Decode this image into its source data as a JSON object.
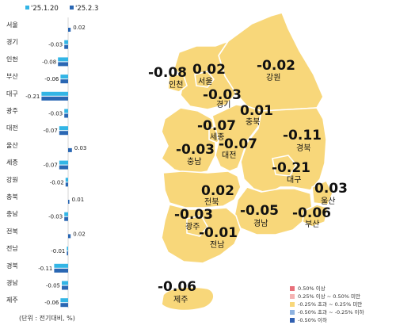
{
  "chart_data": [
    {
      "type": "bar",
      "orientation": "horizontal",
      "categories": [
        "서울",
        "경기",
        "인천",
        "부산",
        "대구",
        "광주",
        "대전",
        "울산",
        "세종",
        "강원",
        "충북",
        "충남",
        "전북",
        "전남",
        "경북",
        "경남",
        "제주"
      ],
      "series": [
        {
          "name": "'25.1.20",
          "color": "#33b5e5",
          "values": [
            0.0,
            -0.03,
            -0.08,
            -0.06,
            -0.21,
            -0.03,
            -0.07,
            0.0,
            -0.07,
            -0.02,
            0.0,
            -0.03,
            0.0,
            -0.01,
            -0.11,
            -0.05,
            -0.06
          ]
        },
        {
          "name": "'25.2.3",
          "color": "#2a67b3",
          "values": [
            0.02,
            -0.03,
            -0.08,
            -0.06,
            -0.21,
            -0.03,
            -0.07,
            0.03,
            -0.07,
            -0.02,
            0.01,
            -0.03,
            0.02,
            -0.01,
            -0.11,
            -0.05,
            -0.06
          ]
        }
      ],
      "data_labels": [
        "0.02",
        "-0.03",
        "-0.08",
        "-0.06",
        "-0.21",
        "-0.03",
        "-0.07",
        "0.03",
        "-0.07",
        "-0.02",
        "0.01",
        "-0.03",
        "0.02",
        "-0.01",
        "-0.11",
        "-0.05",
        "-0.06"
      ],
      "unit_note": "(단위 : 전기대비, %)",
      "grid": false
    },
    {
      "type": "map",
      "regions": [
        {
          "name": "서울",
          "value": "0.02"
        },
        {
          "name": "인천",
          "value": "-0.08"
        },
        {
          "name": "경기",
          "value": "-0.03"
        },
        {
          "name": "강원",
          "value": "-0.02"
        },
        {
          "name": "충북",
          "value": "0.01"
        },
        {
          "name": "세종",
          "value": "-0.07"
        },
        {
          "name": "대전",
          "value": "-0.07"
        },
        {
          "name": "충남",
          "value": "-0.03"
        },
        {
          "name": "경북",
          "value": "-0.11"
        },
        {
          "name": "대구",
          "value": "-0.21"
        },
        {
          "name": "전북",
          "value": "0.02"
        },
        {
          "name": "울산",
          "value": "0.03"
        },
        {
          "name": "광주",
          "value": "-0.03"
        },
        {
          "name": "경남",
          "value": "-0.05"
        },
        {
          "name": "부산",
          "value": "-0.06"
        },
        {
          "name": "전남",
          "value": "-0.01"
        },
        {
          "name": "제주",
          "value": "-0.06"
        }
      ],
      "fill_color": "#f8d77a",
      "legend": [
        {
          "label": "0.50% 이상",
          "color": "#e8707a"
        },
        {
          "label": "0.25% 이상 ~ 0.50% 미만",
          "color": "#f4b3b3"
        },
        {
          "label": "-0.25% 초과 ~ 0.25% 미만",
          "color": "#f8d77a"
        },
        {
          "label": "-0.50% 초과 ~ -0.25% 이하",
          "color": "#8fb3e0"
        },
        {
          "label": "-0.50% 이하",
          "color": "#2f5fb0"
        }
      ],
      "legend_position": "bottom-right"
    }
  ]
}
